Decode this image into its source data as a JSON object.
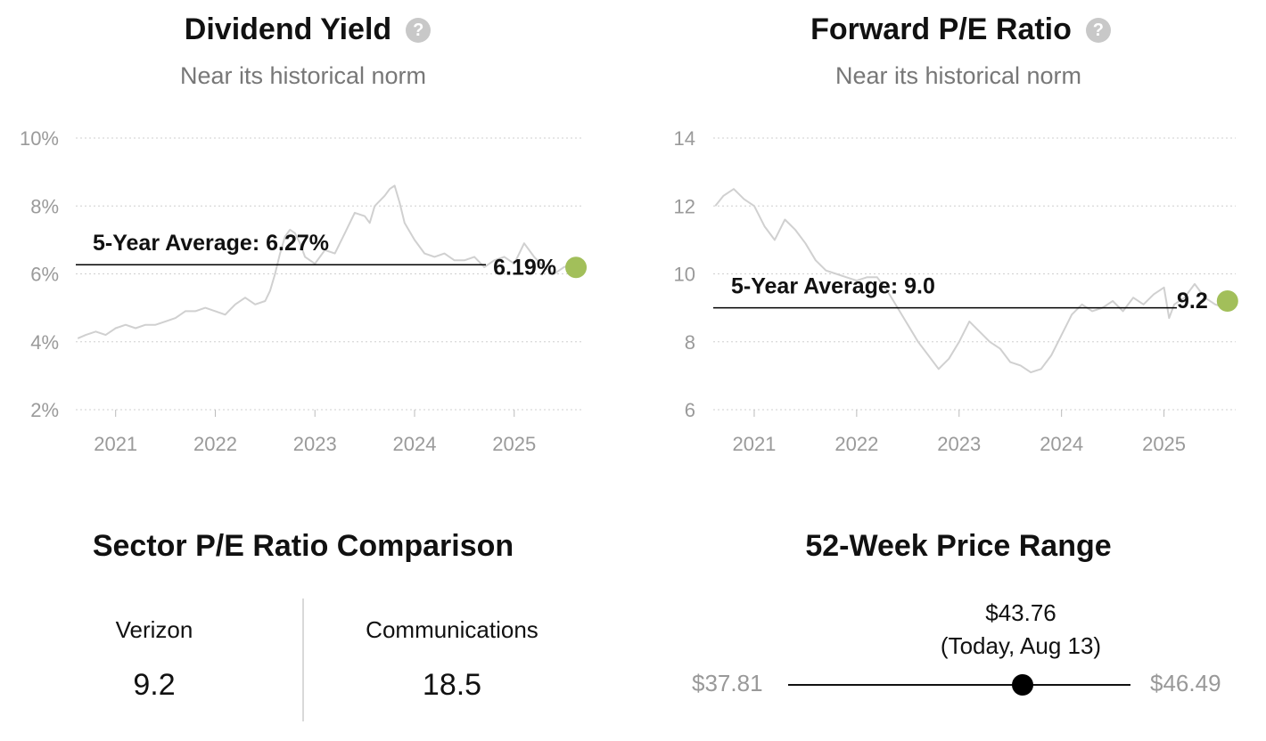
{
  "chart_data": [
    {
      "type": "line",
      "title": "Dividend Yield",
      "subtitle": "Near its historical norm",
      "ylim": [
        2,
        10
      ],
      "yticks": [
        "2%",
        "4%",
        "6%",
        "8%",
        "10%"
      ],
      "xticks": [
        "2021",
        "2022",
        "2023",
        "2024",
        "2025"
      ],
      "xlim": [
        2020.6,
        2025.7
      ],
      "grid": true,
      "average": {
        "label": "5-Year Average: 6.27%",
        "value": 6.27
      },
      "current": {
        "label": "6.19%",
        "value": 6.19,
        "x": 2025.62
      },
      "series": [
        {
          "x": [
            2020.62,
            2020.7,
            2020.8,
            2020.9,
            2021.0,
            2021.1,
            2021.2,
            2021.3,
            2021.4,
            2021.5,
            2021.6,
            2021.7,
            2021.8,
            2021.9,
            2022.0,
            2022.1,
            2022.2,
            2022.3,
            2022.4,
            2022.5,
            2022.55,
            2022.6,
            2022.65,
            2022.7,
            2022.75,
            2022.8,
            2022.85,
            2022.9,
            2023.0,
            2023.1,
            2023.2,
            2023.3,
            2023.4,
            2023.5,
            2023.55,
            2023.6,
            2023.7,
            2023.75,
            2023.8,
            2023.85,
            2023.9,
            2024.0,
            2024.1,
            2024.2,
            2024.3,
            2024.4,
            2024.5,
            2024.6,
            2024.7,
            2024.8,
            2024.9,
            2025.0,
            2025.05,
            2025.1,
            2025.2,
            2025.3,
            2025.4,
            2025.5,
            2025.6
          ],
          "values": [
            4.1,
            4.2,
            4.3,
            4.2,
            4.4,
            4.5,
            4.4,
            4.5,
            4.5,
            4.6,
            4.7,
            4.9,
            4.9,
            5.0,
            4.9,
            4.8,
            5.1,
            5.3,
            5.1,
            5.2,
            5.5,
            6.0,
            6.6,
            7.1,
            7.3,
            7.2,
            6.9,
            6.5,
            6.3,
            6.7,
            6.6,
            7.2,
            7.8,
            7.7,
            7.5,
            8.0,
            8.3,
            8.5,
            8.6,
            8.1,
            7.5,
            7.0,
            6.6,
            6.5,
            6.6,
            6.4,
            6.4,
            6.5,
            6.2,
            6.4,
            6.5,
            6.3,
            6.6,
            6.9,
            6.5,
            6.2,
            6.0,
            6.2,
            6.3
          ]
        }
      ]
    },
    {
      "type": "line",
      "title": "Forward P/E Ratio",
      "subtitle": "Near its historical norm",
      "ylim": [
        6,
        14
      ],
      "yticks": [
        "6",
        "8",
        "10",
        "12",
        "14"
      ],
      "xticks": [
        "2021",
        "2022",
        "2023",
        "2024",
        "2025"
      ],
      "xlim": [
        2020.6,
        2025.7
      ],
      "grid": true,
      "average": {
        "label": "5-Year Average: 9.0",
        "value": 9.0
      },
      "current": {
        "label": "9.2",
        "value": 9.2,
        "x": 2025.62
      },
      "series": [
        {
          "x": [
            2020.62,
            2020.7,
            2020.8,
            2020.9,
            2021.0,
            2021.1,
            2021.2,
            2021.3,
            2021.4,
            2021.5,
            2021.6,
            2021.7,
            2021.8,
            2021.9,
            2022.0,
            2022.1,
            2022.2,
            2022.3,
            2022.4,
            2022.5,
            2022.6,
            2022.7,
            2022.8,
            2022.9,
            2023.0,
            2023.1,
            2023.2,
            2023.3,
            2023.4,
            2023.5,
            2023.6,
            2023.7,
            2023.8,
            2023.9,
            2024.0,
            2024.1,
            2024.2,
            2024.3,
            2024.4,
            2024.5,
            2024.6,
            2024.7,
            2024.8,
            2024.9,
            2025.0,
            2025.05,
            2025.1,
            2025.2,
            2025.3,
            2025.4,
            2025.5,
            2025.6
          ],
          "values": [
            12.0,
            12.3,
            12.5,
            12.2,
            12.0,
            11.4,
            11.0,
            11.6,
            11.3,
            10.9,
            10.4,
            10.1,
            10.0,
            9.9,
            9.8,
            9.9,
            9.9,
            9.5,
            9.0,
            8.5,
            8.0,
            7.6,
            7.2,
            7.5,
            8.0,
            8.6,
            8.3,
            8.0,
            7.8,
            7.4,
            7.3,
            7.1,
            7.2,
            7.6,
            8.2,
            8.8,
            9.1,
            8.9,
            9.0,
            9.2,
            8.9,
            9.3,
            9.1,
            9.4,
            9.6,
            8.7,
            9.1,
            9.3,
            9.7,
            9.3,
            9.1,
            9.0
          ]
        }
      ]
    }
  ],
  "sector": {
    "title": "Sector P/E Ratio Comparison",
    "left_name": "Verizon",
    "left_value": "9.2",
    "right_name": "Communications",
    "right_value": "18.5"
  },
  "price_range": {
    "title": "52-Week Price Range",
    "current_price": "$43.76",
    "current_label": "(Today, Aug 13)",
    "low": "$37.81",
    "high": "$46.49",
    "low_value": 37.81,
    "high_value": 46.49,
    "current_value": 43.76
  },
  "colors": {
    "line": "#d0d0d0",
    "marker": "#a2bf5a",
    "grid": "#cfcfcf",
    "axis_text": "#9a9a9a"
  }
}
